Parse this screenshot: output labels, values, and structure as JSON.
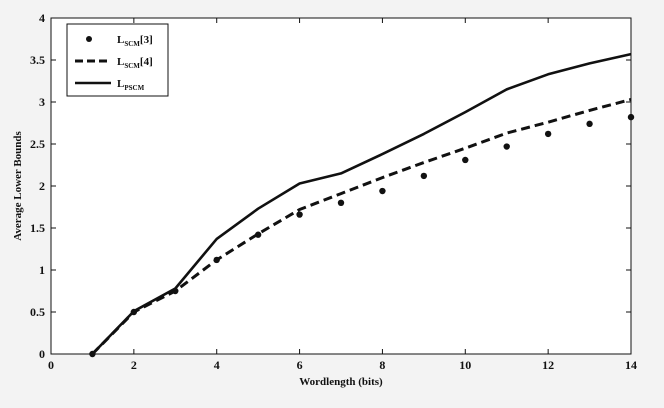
{
  "chart_data": {
    "type": "line",
    "title": "",
    "xlabel": "Wordlength (bits)",
    "ylabel": "Average Lower Bounds",
    "xlim": [
      0,
      14
    ],
    "ylim": [
      0,
      4
    ],
    "xticks": [
      0,
      2,
      4,
      6,
      8,
      10,
      12,
      14
    ],
    "yticks": [
      0,
      0.5,
      1,
      1.5,
      2,
      2.5,
      3,
      3.5,
      4
    ],
    "xtick_labels": [
      "0",
      "2",
      "4",
      "6",
      "8",
      "10",
      "12",
      "14"
    ],
    "ytick_labels": [
      "0",
      "0.5",
      "1",
      "1.5",
      "2",
      "2.5",
      "3",
      "3.5",
      "4"
    ],
    "grid": false,
    "legend_position": "top-left",
    "x": [
      1,
      2,
      3,
      4,
      5,
      6,
      7,
      8,
      9,
      10,
      11,
      12,
      13,
      14
    ],
    "series": [
      {
        "name": "L_SCM[3]",
        "label_main": "L",
        "label_sub": "SCM",
        "label_suffix": "[3]",
        "style": "dots",
        "values": [
          0.0,
          0.5,
          0.75,
          1.12,
          1.42,
          1.66,
          1.8,
          1.94,
          2.12,
          2.31,
          2.47,
          2.62,
          2.74,
          2.82
        ]
      },
      {
        "name": "L_SCM[4]",
        "label_main": "L",
        "label_sub": "SCM",
        "label_suffix": "[4]",
        "style": "dashed",
        "values": [
          0.0,
          0.5,
          0.75,
          1.12,
          1.43,
          1.72,
          1.91,
          2.1,
          2.28,
          2.45,
          2.63,
          2.76,
          2.9,
          3.03
        ]
      },
      {
        "name": "L_PSCM",
        "label_main": "L",
        "label_sub": "PSCM",
        "label_suffix": "",
        "style": "solid",
        "values": [
          0.0,
          0.51,
          0.78,
          1.37,
          1.73,
          2.03,
          2.15,
          2.38,
          2.62,
          2.88,
          3.15,
          3.33,
          3.46,
          3.57
        ]
      }
    ]
  }
}
